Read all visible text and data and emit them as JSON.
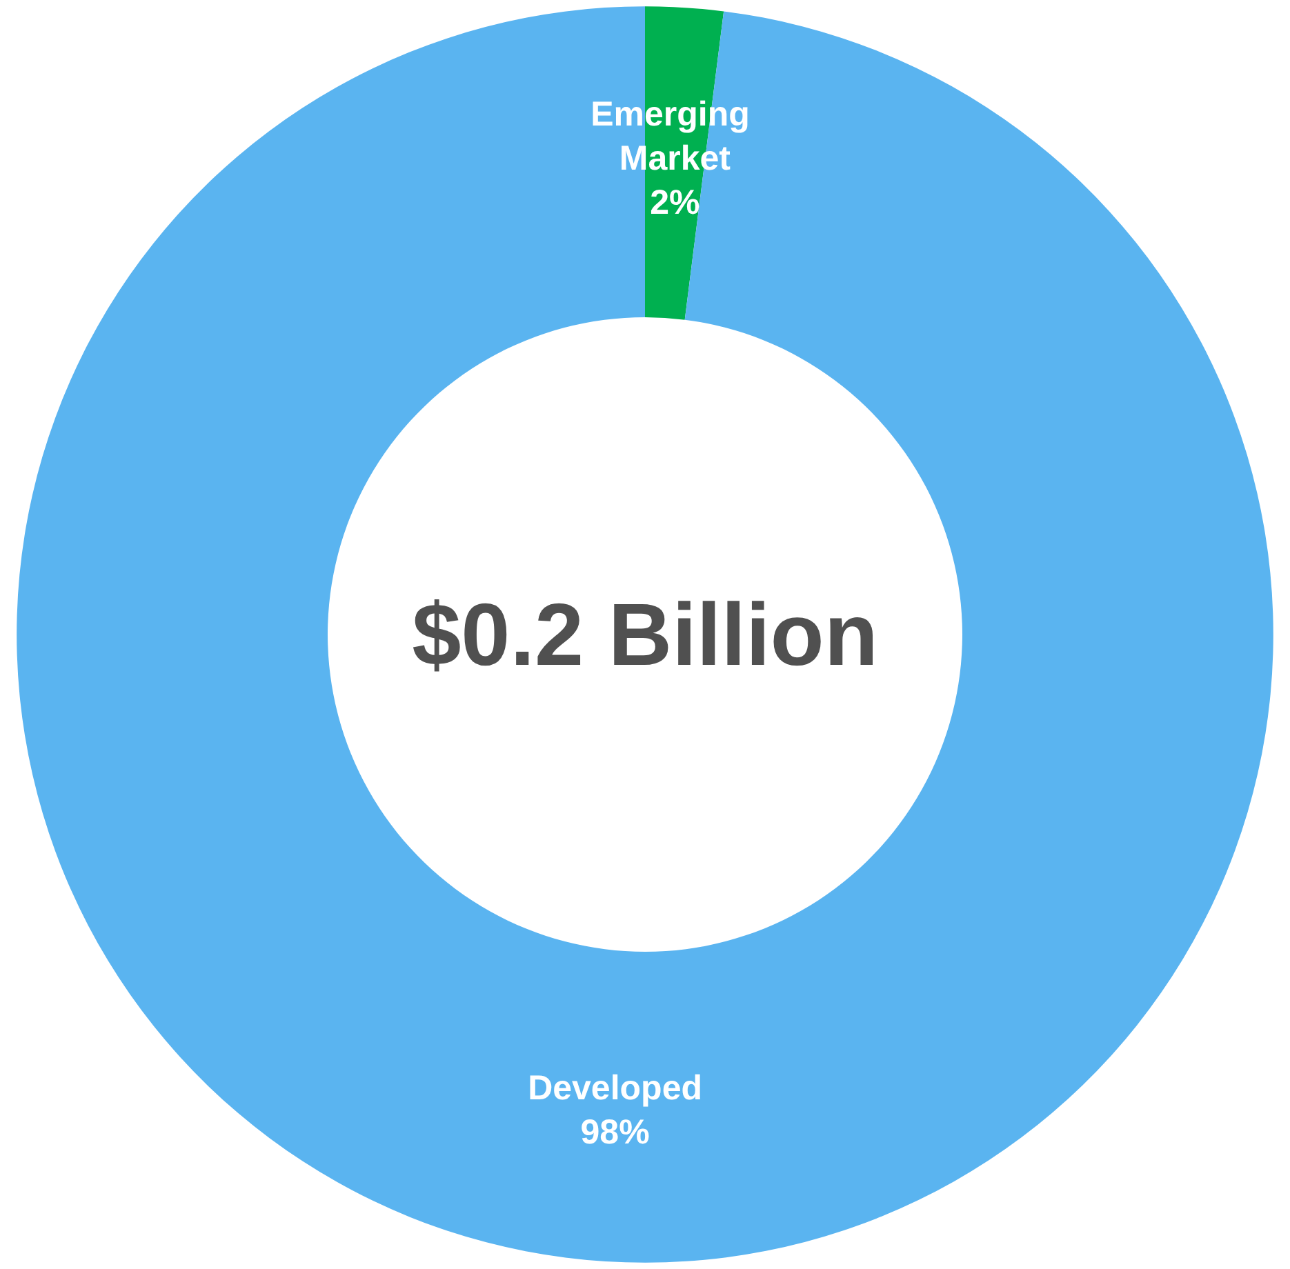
{
  "chart_data": {
    "type": "donut",
    "title": "$0.2 Billion",
    "categories": [
      "Emerging Market",
      "Developed"
    ],
    "values": [
      2,
      98
    ],
    "colors": [
      "#00b050",
      "#5ab4f0"
    ],
    "value_labels": [
      "2%",
      "98%"
    ],
    "legend": false
  }
}
